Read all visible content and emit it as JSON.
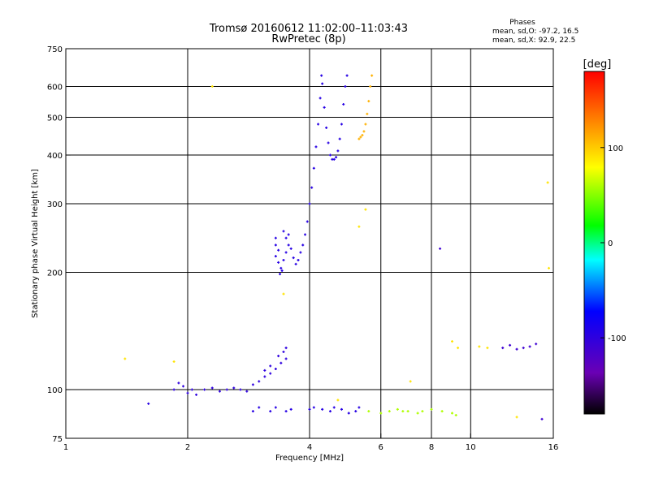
{
  "chart_data": {
    "type": "scatter",
    "title": "Tromsø 20160612 11:02:00–11:03:43",
    "subtitle": "RwPretec (8p)",
    "xlabel": "Frequency [MHz]",
    "ylabel": "Stationary phase Virtual Height [km]",
    "x_scale": "log",
    "y_scale": "log",
    "xlim": [
      1,
      16
    ],
    "ylim": [
      75,
      750
    ],
    "x_ticks": [
      1,
      2,
      4,
      6,
      8,
      10,
      16
    ],
    "y_ticks": [
      75,
      100,
      200,
      300,
      400,
      500,
      600,
      750
    ],
    "x_gridlines": [
      2,
      4,
      6,
      8,
      10
    ],
    "y_gridlines": [
      100,
      200,
      300,
      400,
      500,
      600
    ],
    "legend_title": "Phases",
    "stats_lines": [
      "mean, sd,O: -97.2, 16.5",
      "mean, sd,X:  92.9, 22.5"
    ],
    "colorbar": {
      "label": "[deg]",
      "ticks": [
        100,
        0,
        -100
      ],
      "range": [
        -180,
        180
      ],
      "colors": [
        "#000000",
        "#6a00b4",
        "#0000ff",
        "#00ffff",
        "#00ff00",
        "#ffff00",
        "#ff8000",
        "#ff0000"
      ]
    },
    "clusters": [
      {
        "phase": -100,
        "points": [
          [
            1.85,
            100
          ],
          [
            1.9,
            104
          ],
          [
            1.95,
            102
          ],
          [
            2.0,
            98
          ],
          [
            2.05,
            100
          ],
          [
            2.1,
            97
          ],
          [
            2.2,
            100
          ],
          [
            2.3,
            101
          ],
          [
            2.4,
            99
          ],
          [
            2.5,
            100
          ],
          [
            2.6,
            101
          ],
          [
            2.7,
            100
          ],
          [
            2.8,
            99
          ],
          [
            2.9,
            103
          ],
          [
            3.0,
            105
          ],
          [
            3.1,
            108
          ],
          [
            3.2,
            110
          ],
          [
            3.3,
            113
          ],
          [
            3.4,
            117
          ],
          [
            3.5,
            120
          ],
          [
            3.45,
            125
          ],
          [
            3.35,
            122
          ],
          [
            3.5,
            128
          ],
          [
            3.2,
            115
          ],
          [
            3.1,
            112
          ]
        ]
      },
      {
        "phase": -95,
        "points": [
          [
            3.3,
            245
          ],
          [
            3.3,
            235
          ],
          [
            3.35,
            228
          ],
          [
            3.3,
            220
          ],
          [
            3.35,
            212
          ],
          [
            3.4,
            205
          ],
          [
            3.38,
            198
          ],
          [
            3.42,
            202
          ],
          [
            3.45,
            215
          ],
          [
            3.5,
            225
          ],
          [
            3.55,
            235
          ],
          [
            3.5,
            245
          ],
          [
            3.45,
            255
          ],
          [
            3.55,
            250
          ],
          [
            3.6,
            230
          ],
          [
            3.65,
            218
          ],
          [
            3.7,
            210
          ],
          [
            3.75,
            215
          ],
          [
            3.8,
            225
          ],
          [
            3.85,
            235
          ],
          [
            3.9,
            250
          ],
          [
            3.95,
            270
          ],
          [
            4.0,
            300
          ],
          [
            4.05,
            330
          ],
          [
            4.1,
            370
          ],
          [
            4.15,
            420
          ],
          [
            4.2,
            480
          ],
          [
            4.25,
            560
          ],
          [
            4.28,
            640
          ],
          [
            4.3,
            610
          ],
          [
            4.35,
            530
          ],
          [
            4.4,
            470
          ],
          [
            4.45,
            430
          ],
          [
            4.5,
            400
          ],
          [
            4.55,
            390
          ],
          [
            4.6,
            390
          ],
          [
            4.65,
            395
          ],
          [
            4.7,
            410
          ],
          [
            4.75,
            440
          ],
          [
            4.8,
            480
          ],
          [
            4.85,
            540
          ],
          [
            4.9,
            600
          ],
          [
            4.95,
            640
          ]
        ]
      },
      {
        "phase": 110,
        "points": [
          [
            5.3,
            440
          ],
          [
            5.35,
            445
          ],
          [
            5.4,
            450
          ],
          [
            5.45,
            460
          ],
          [
            5.5,
            480
          ],
          [
            5.55,
            510
          ],
          [
            5.6,
            550
          ],
          [
            5.65,
            600
          ],
          [
            5.7,
            640
          ]
        ]
      },
      {
        "phase": -95,
        "points": [
          [
            1.6,
            92
          ],
          [
            2.9,
            88
          ],
          [
            3.0,
            90
          ],
          [
            3.2,
            88
          ],
          [
            3.3,
            90
          ],
          [
            3.5,
            88
          ],
          [
            3.6,
            89
          ],
          [
            4.0,
            89
          ],
          [
            4.1,
            90
          ],
          [
            4.3,
            89
          ],
          [
            4.5,
            88
          ],
          [
            4.6,
            90
          ],
          [
            4.8,
            89
          ],
          [
            5.0,
            87
          ],
          [
            5.2,
            88
          ],
          [
            5.3,
            90
          ]
        ]
      },
      {
        "phase": 60,
        "points": [
          [
            5.6,
            88
          ],
          [
            6.0,
            87
          ],
          [
            6.3,
            88
          ],
          [
            6.6,
            89
          ],
          [
            6.8,
            88
          ],
          [
            7.0,
            88
          ],
          [
            7.4,
            87
          ],
          [
            7.6,
            88
          ],
          [
            8.0,
            89
          ],
          [
            8.5,
            88
          ],
          [
            9.0,
            87
          ],
          [
            9.2,
            86
          ]
        ]
      },
      {
        "phase": -110,
        "points": [
          [
            8.4,
            230
          ],
          [
            12.0,
            128
          ],
          [
            12.5,
            130
          ],
          [
            13.0,
            127
          ],
          [
            13.5,
            128
          ],
          [
            14.0,
            129
          ],
          [
            14.5,
            131
          ],
          [
            15.0,
            84
          ]
        ]
      },
      {
        "phase": 90,
        "points": [
          [
            5.3,
            262
          ],
          [
            5.5,
            290
          ],
          [
            7.1,
            105
          ],
          [
            9.0,
            133
          ],
          [
            9.3,
            128
          ],
          [
            10.5,
            129
          ],
          [
            11.0,
            128
          ],
          [
            1.4,
            120
          ],
          [
            1.85,
            118
          ],
          [
            2.3,
            600
          ],
          [
            15.5,
            340
          ],
          [
            15.6,
            205
          ],
          [
            3.45,
            176
          ],
          [
            4.7,
            94
          ],
          [
            13.0,
            85
          ]
        ]
      }
    ]
  }
}
